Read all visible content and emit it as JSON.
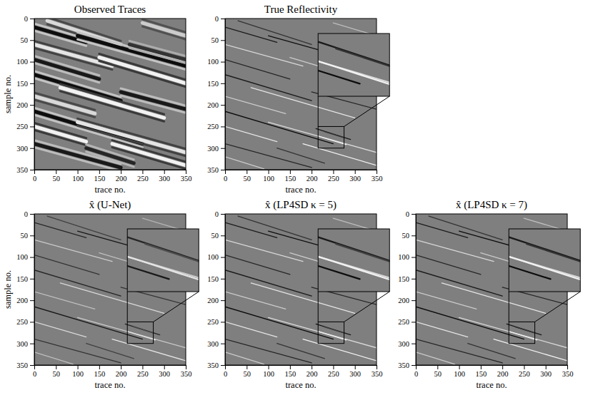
{
  "chart_data": [
    {
      "type": "image",
      "title": "Observed Traces",
      "x_label": "trace no.",
      "y_label": "sample no.",
      "xlim": [
        0,
        350
      ],
      "ylim": [
        350,
        0
      ],
      "xticks": [
        0,
        50,
        100,
        150,
        200,
        250,
        300,
        350
      ],
      "yticks": [
        0,
        50,
        100,
        150,
        200,
        250,
        300,
        350
      ],
      "events": [
        [
          0,
          20,
          120,
          55,
          -0.9
        ],
        [
          30,
          5,
          200,
          60,
          0.7
        ],
        [
          0,
          60,
          180,
          110,
          0.8
        ],
        [
          100,
          40,
          350,
          110,
          -0.9
        ],
        [
          0,
          95,
          150,
          140,
          -0.8
        ],
        [
          150,
          90,
          350,
          150,
          0.9
        ],
        [
          0,
          130,
          200,
          190,
          -0.9
        ],
        [
          60,
          160,
          300,
          230,
          0.9
        ],
        [
          200,
          170,
          350,
          210,
          -0.8
        ],
        [
          0,
          180,
          140,
          220,
          0.7
        ],
        [
          0,
          215,
          250,
          290,
          -0.9
        ],
        [
          100,
          240,
          350,
          310,
          0.8
        ],
        [
          0,
          250,
          120,
          285,
          0.9
        ],
        [
          0,
          290,
          200,
          345,
          -0.8
        ],
        [
          180,
          290,
          350,
          340,
          0.9
        ],
        [
          250,
          10,
          350,
          40,
          0.6
        ],
        [
          220,
          60,
          350,
          95,
          -0.6
        ],
        [
          120,
          300,
          230,
          335,
          -0.7
        ]
      ]
    },
    {
      "type": "image",
      "title": "True Reflectivity",
      "x_label": "trace no.",
      "xlim": [
        0,
        350
      ],
      "ylim": [
        350,
        0
      ],
      "xticks": [
        0,
        50,
        100,
        150,
        200,
        250,
        300,
        350
      ],
      "yticks": [
        0,
        50,
        100,
        150,
        200,
        250,
        300,
        350
      ],
      "zoom": {
        "xlim": [
          215,
          275
        ],
        "ylim": [
          300,
          250
        ]
      },
      "events": [
        [
          0,
          20,
          120,
          55,
          -0.8
        ],
        [
          30,
          5,
          200,
          60,
          -0.6
        ],
        [
          0,
          60,
          180,
          110,
          0.7
        ],
        [
          100,
          40,
          350,
          110,
          -0.9
        ],
        [
          0,
          95,
          150,
          140,
          -0.7
        ],
        [
          150,
          90,
          350,
          150,
          0.6
        ],
        [
          0,
          130,
          200,
          190,
          -0.8
        ],
        [
          60,
          160,
          300,
          230,
          0.8
        ],
        [
          200,
          170,
          350,
          210,
          -0.7
        ],
        [
          0,
          180,
          140,
          220,
          0.6
        ],
        [
          0,
          215,
          250,
          290,
          -0.9
        ],
        [
          100,
          240,
          350,
          310,
          0.7
        ],
        [
          0,
          250,
          120,
          285,
          0.8
        ],
        [
          0,
          290,
          200,
          345,
          -0.7
        ],
        [
          180,
          290,
          350,
          340,
          0.9
        ],
        [
          250,
          10,
          350,
          40,
          0.5
        ],
        [
          220,
          60,
          350,
          95,
          -0.5
        ],
        [
          0,
          320,
          90,
          348,
          0.6
        ],
        [
          120,
          300,
          230,
          335,
          -0.6
        ],
        [
          210,
          255,
          290,
          280,
          -0.8
        ],
        [
          215,
          272,
          280,
          292,
          0.9
        ],
        [
          230,
          262,
          275,
          276,
          -0.6
        ]
      ]
    },
    {
      "type": "image",
      "title": "x̂ (U-Net)",
      "x_label": "trace no.",
      "y_label": "sample no.",
      "xlim": [
        0,
        350
      ],
      "ylim": [
        350,
        0
      ],
      "xticks": [
        0,
        50,
        100,
        150,
        200,
        250,
        300,
        350
      ],
      "yticks": [
        0,
        50,
        100,
        150,
        200,
        250,
        300,
        350
      ],
      "zoom": {
        "xlim": [
          215,
          275
        ],
        "ylim": [
          300,
          250
        ]
      },
      "events": [
        [
          0,
          20,
          120,
          55,
          -0.7
        ],
        [
          30,
          5,
          200,
          60,
          -0.5
        ],
        [
          0,
          60,
          180,
          110,
          0.6
        ],
        [
          100,
          40,
          350,
          110,
          -0.8
        ],
        [
          0,
          95,
          150,
          140,
          -0.6
        ],
        [
          150,
          90,
          350,
          150,
          0.5
        ],
        [
          0,
          130,
          200,
          190,
          -0.7
        ],
        [
          60,
          160,
          300,
          230,
          0.7
        ],
        [
          200,
          170,
          350,
          210,
          -0.6
        ],
        [
          0,
          180,
          140,
          220,
          0.5
        ],
        [
          0,
          215,
          250,
          290,
          -0.8
        ],
        [
          100,
          240,
          350,
          310,
          0.6
        ],
        [
          0,
          250,
          120,
          285,
          0.7
        ],
        [
          0,
          290,
          200,
          345,
          -0.6
        ],
        [
          180,
          290,
          350,
          340,
          0.8
        ],
        [
          250,
          10,
          350,
          40,
          0.4
        ],
        [
          220,
          60,
          350,
          95,
          -0.4
        ],
        [
          0,
          320,
          90,
          348,
          0.5
        ],
        [
          120,
          300,
          230,
          335,
          -0.5
        ],
        [
          210,
          255,
          290,
          280,
          -0.7
        ],
        [
          215,
          272,
          280,
          292,
          0.8
        ],
        [
          230,
          262,
          275,
          276,
          -0.4
        ]
      ]
    },
    {
      "type": "image",
      "title": "x̂ (LP4SD κ = 5)",
      "x_label": "trace no.",
      "xlim": [
        0,
        350
      ],
      "ylim": [
        350,
        0
      ],
      "xticks": [
        0,
        50,
        100,
        150,
        200,
        250,
        300,
        350
      ],
      "yticks": [
        0,
        50,
        100,
        150,
        200,
        250,
        300,
        350
      ],
      "zoom": {
        "xlim": [
          215,
          275
        ],
        "ylim": [
          300,
          250
        ]
      },
      "events": [
        [
          0,
          20,
          120,
          55,
          -0.8
        ],
        [
          30,
          5,
          200,
          60,
          -0.6
        ],
        [
          0,
          60,
          180,
          110,
          0.7
        ],
        [
          100,
          40,
          350,
          110,
          -0.9
        ],
        [
          0,
          95,
          150,
          140,
          -0.7
        ],
        [
          150,
          90,
          350,
          150,
          0.6
        ],
        [
          0,
          130,
          200,
          190,
          -0.8
        ],
        [
          60,
          160,
          300,
          230,
          0.8
        ],
        [
          200,
          170,
          350,
          210,
          -0.7
        ],
        [
          0,
          180,
          140,
          220,
          0.6
        ],
        [
          0,
          215,
          250,
          290,
          -0.9
        ],
        [
          100,
          240,
          350,
          310,
          0.7
        ],
        [
          0,
          250,
          120,
          285,
          0.8
        ],
        [
          0,
          290,
          200,
          345,
          -0.7
        ],
        [
          180,
          290,
          350,
          340,
          0.9
        ],
        [
          250,
          10,
          350,
          40,
          0.5
        ],
        [
          220,
          60,
          350,
          95,
          -0.5
        ],
        [
          0,
          320,
          90,
          348,
          0.6
        ],
        [
          120,
          300,
          230,
          335,
          -0.6
        ],
        [
          210,
          255,
          290,
          280,
          -0.8
        ],
        [
          215,
          272,
          280,
          292,
          0.9
        ],
        [
          230,
          262,
          275,
          276,
          -0.5
        ]
      ]
    },
    {
      "type": "image",
      "title": "x̂ (LP4SD κ = 7)",
      "x_label": "trace no.",
      "xlim": [
        0,
        350
      ],
      "ylim": [
        350,
        0
      ],
      "xticks": [
        0,
        50,
        100,
        150,
        200,
        250,
        300,
        350
      ],
      "yticks": [
        0,
        50,
        100,
        150,
        200,
        250,
        300,
        350
      ],
      "zoom": {
        "xlim": [
          215,
          275
        ],
        "ylim": [
          300,
          250
        ]
      },
      "events": [
        [
          0,
          20,
          120,
          55,
          -0.8
        ],
        [
          30,
          5,
          200,
          60,
          -0.6
        ],
        [
          0,
          60,
          180,
          110,
          0.7
        ],
        [
          100,
          40,
          350,
          110,
          -0.9
        ],
        [
          0,
          95,
          150,
          140,
          -0.7
        ],
        [
          150,
          90,
          350,
          150,
          0.6
        ],
        [
          0,
          130,
          200,
          190,
          -0.8
        ],
        [
          60,
          160,
          300,
          230,
          0.8
        ],
        [
          200,
          170,
          350,
          210,
          -0.7
        ],
        [
          0,
          180,
          140,
          220,
          0.6
        ],
        [
          0,
          215,
          250,
          290,
          -0.9
        ],
        [
          100,
          240,
          350,
          310,
          0.7
        ],
        [
          0,
          250,
          120,
          285,
          0.8
        ],
        [
          0,
          290,
          200,
          345,
          -0.7
        ],
        [
          180,
          290,
          350,
          340,
          0.9
        ],
        [
          250,
          10,
          350,
          40,
          0.5
        ],
        [
          220,
          60,
          350,
          95,
          -0.5
        ],
        [
          0,
          320,
          90,
          348,
          0.6
        ],
        [
          120,
          300,
          230,
          335,
          -0.6
        ],
        [
          210,
          255,
          290,
          280,
          -0.8
        ],
        [
          215,
          272,
          280,
          292,
          0.9
        ],
        [
          230,
          262,
          275,
          276,
          -0.6
        ]
      ]
    }
  ]
}
